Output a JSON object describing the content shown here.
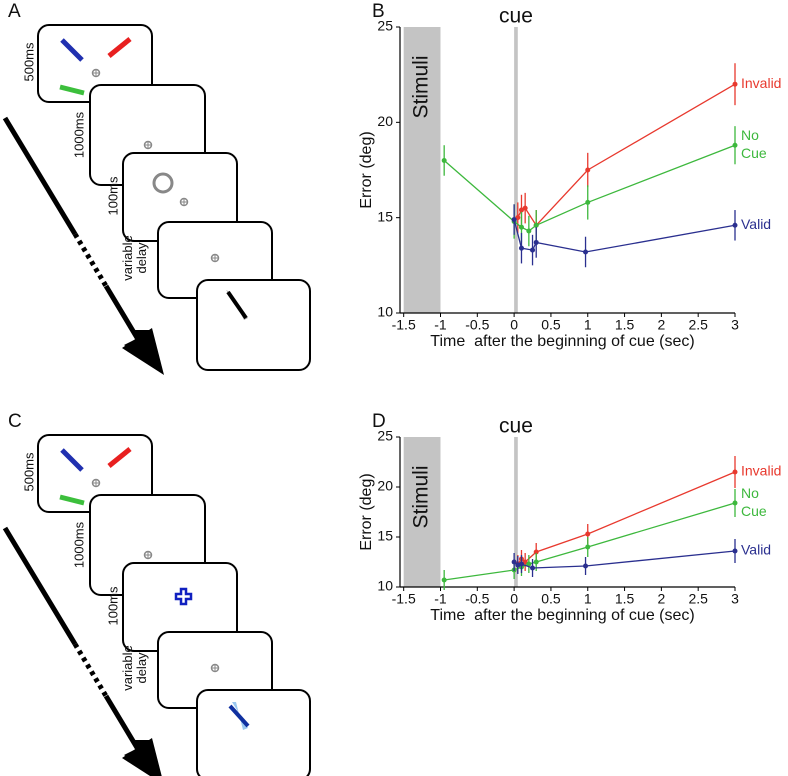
{
  "panels": [
    {
      "label": "A",
      "durations": [
        "500ms",
        "1000ms",
        "100ms",
        "variable delay"
      ]
    },
    {
      "label": "C",
      "durations": [
        "500ms",
        "1000ms",
        "100ms",
        "variable delay"
      ]
    }
  ],
  "chart_data": [
    {
      "type": "line",
      "panel": "B",
      "xlabel": "Time  after the beginning of cue (sec)",
      "ylabel": "Error (deg)",
      "xlim": [
        -1.55,
        3
      ],
      "ylim": [
        10,
        25
      ],
      "xticks": [
        -1.5,
        -1,
        -0.5,
        0,
        0.5,
        1,
        1.5,
        2,
        2.5,
        3
      ],
      "yticks": [
        10,
        15,
        20,
        25
      ],
      "annotations": [
        {
          "label": "Stimuli",
          "x0": -1.5,
          "x1": -1
        },
        {
          "label": "cue",
          "x0": 0,
          "x1": 0.05
        }
      ],
      "series": [
        {
          "name": "Invalid",
          "color": "#e8392e",
          "x": [
            0.05,
            0.1,
            0.15,
            0.3,
            1,
            3
          ],
          "values": [
            15.0,
            15.4,
            15.5,
            14.6,
            17.5,
            22.0
          ],
          "errors": [
            0.8,
            0.8,
            0.8,
            0.8,
            0.9,
            1.1
          ]
        },
        {
          "name": "No Cue",
          "color": "#3db83d",
          "x": [
            -0.95,
            0,
            0.1,
            0.2,
            0.3,
            1,
            3
          ],
          "values": [
            18.0,
            14.8,
            14.5,
            14.3,
            14.6,
            15.8,
            18.8
          ],
          "errors": [
            0.8,
            0.9,
            0.8,
            0.8,
            0.8,
            0.9,
            1.0
          ]
        },
        {
          "name": "Valid",
          "color": "#2a2f8f",
          "x": [
            0,
            0.1,
            0.25,
            0.3,
            0.97,
            3
          ],
          "values": [
            14.9,
            13.4,
            13.3,
            13.7,
            13.2,
            14.6
          ],
          "errors": [
            0.8,
            0.8,
            0.8,
            0.8,
            0.8,
            0.8
          ]
        }
      ]
    },
    {
      "type": "line",
      "panel": "D",
      "xlabel": "Time  after the beginning of cue (sec)",
      "ylabel": "Error (deg)",
      "xlim": [
        -1.55,
        3
      ],
      "ylim": [
        10,
        25
      ],
      "xticks": [
        -1.5,
        -1,
        -0.5,
        0,
        0.5,
        1,
        1.5,
        2,
        2.5,
        3
      ],
      "yticks": [
        10,
        15,
        20,
        25
      ],
      "annotations": [
        {
          "label": "Stimuli",
          "x0": -1.5,
          "x1": -1
        },
        {
          "label": "cue",
          "x0": 0,
          "x1": 0.05
        }
      ],
      "series": [
        {
          "name": "Invalid",
          "color": "#e8392e",
          "x": [
            0.05,
            0.1,
            0.15,
            0.3,
            1,
            3
          ],
          "values": [
            12.3,
            12.8,
            12.5,
            13.5,
            15.3,
            21.5
          ],
          "errors": [
            0.9,
            0.9,
            0.9,
            0.9,
            1.0,
            1.6
          ]
        },
        {
          "name": "No Cue",
          "color": "#3db83d",
          "x": [
            -0.95,
            0,
            0.1,
            0.2,
            0.3,
            1,
            3
          ],
          "values": [
            10.7,
            11.7,
            12.0,
            12.3,
            12.5,
            14.0,
            18.4
          ],
          "errors": [
            1.0,
            0.9,
            0.9,
            0.9,
            0.9,
            1.0,
            1.4
          ]
        },
        {
          "name": "Valid",
          "color": "#2a2f8f",
          "x": [
            0,
            0.05,
            0.1,
            0.25,
            0.97,
            3
          ],
          "values": [
            12.5,
            12.2,
            12.3,
            11.9,
            12.1,
            13.6
          ],
          "errors": [
            0.9,
            0.9,
            0.9,
            0.9,
            0.9,
            1.2
          ]
        }
      ]
    }
  ]
}
